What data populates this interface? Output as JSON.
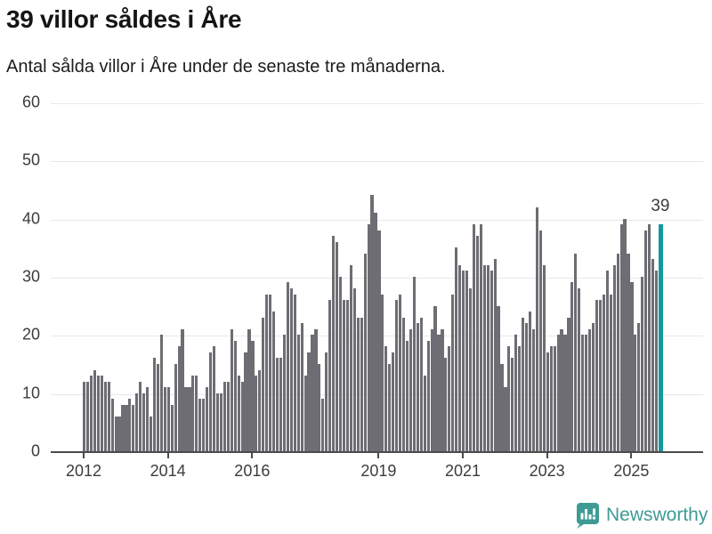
{
  "header": {
    "title": "39 villor såldes i Åre",
    "subtitle": "Antal sålda villor i Åre under de senaste tre månaderna."
  },
  "chart_data": {
    "type": "bar",
    "title": "39 villor såldes i Åre",
    "xlabel": "",
    "ylabel": "",
    "ylim": [
      0,
      60
    ],
    "yticks": [
      0,
      10,
      20,
      30,
      40,
      50,
      60
    ],
    "grid": "horizontal",
    "x_start": "2012-01",
    "x_end": "2025-09",
    "xticks": [
      {
        "label": "2012",
        "month_index": 0
      },
      {
        "label": "2014",
        "month_index": 24
      },
      {
        "label": "2016",
        "month_index": 48
      },
      {
        "label": "2019",
        "month_index": 84
      },
      {
        "label": "2021",
        "month_index": 108
      },
      {
        "label": "2023",
        "month_index": 132
      },
      {
        "label": "2025",
        "month_index": 156
      }
    ],
    "series": [
      {
        "name": "Antal sålda villor, rullande tre månader",
        "values": [
          12,
          12,
          13,
          14,
          13,
          13,
          12,
          12,
          9,
          6,
          6,
          8,
          8,
          9,
          8,
          10,
          12,
          10,
          11,
          6,
          16,
          15,
          20,
          11,
          11,
          8,
          15,
          18,
          21,
          11,
          11,
          13,
          13,
          9,
          9,
          11,
          17,
          18,
          10,
          10,
          12,
          12,
          21,
          19,
          13,
          12,
          17,
          21,
          19,
          13,
          14,
          23,
          27,
          27,
          24,
          16,
          16,
          20,
          29,
          28,
          27,
          20,
          22,
          13,
          17,
          20,
          21,
          15,
          9,
          17,
          26,
          37,
          36,
          30,
          26,
          26,
          32,
          28,
          23,
          23,
          34,
          39,
          44,
          41,
          38,
          27,
          18,
          15,
          17,
          26,
          27,
          23,
          19,
          21,
          30,
          22,
          23,
          13,
          19,
          21,
          25,
          20,
          21,
          16,
          18,
          27,
          35,
          32,
          31,
          31,
          28,
          39,
          37,
          39,
          32,
          32,
          31,
          33,
          25,
          15,
          11,
          18,
          16,
          20,
          18,
          23,
          22,
          24,
          21,
          42,
          38,
          32,
          17,
          18,
          18,
          20,
          21,
          20,
          23,
          29,
          34,
          28,
          20,
          20,
          21,
          22,
          26,
          26,
          27,
          31,
          27,
          32,
          34,
          39,
          40,
          34,
          29,
          20,
          22,
          30,
          38,
          39,
          33,
          31,
          39
        ]
      }
    ],
    "highlight": {
      "index": 164,
      "value": 39,
      "label": "39"
    },
    "colors": {
      "bar": "#6e6d73",
      "highlight": "#12999d",
      "gridline": "#e8e8e8",
      "axis": "#4b4b4c"
    }
  },
  "footer": {
    "brand": "Newsworthy",
    "logo_color": "#3d9b94",
    "logo_icon": "bar-chart-speech-bubble"
  }
}
